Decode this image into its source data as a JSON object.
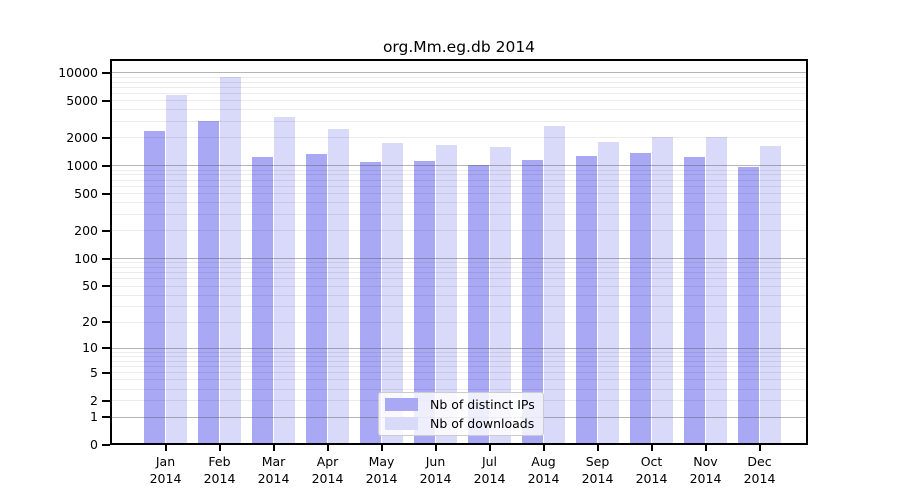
{
  "chart_data": {
    "type": "bar",
    "title": "org.Mm.eg.db 2014",
    "categories": [
      "Jan",
      "Feb",
      "Mar",
      "Apr",
      "May",
      "Jun",
      "Jul",
      "Aug",
      "Sep",
      "Oct",
      "Nov",
      "Dec"
    ],
    "category_year": "2014",
    "series": [
      {
        "name": "Nb of distinct IPs",
        "color": "#a8a8f5",
        "values": [
          2350,
          3010,
          1250,
          1350,
          1110,
          1130,
          1030,
          1160,
          1280,
          1370,
          1240,
          985
        ]
      },
      {
        "name": "Nb of downloads",
        "color": "#d9d9f9",
        "values": [
          5730,
          9000,
          3330,
          2520,
          1780,
          1680,
          1600,
          2710,
          1800,
          2070,
          2070,
          1640
        ]
      }
    ],
    "xlabel": "",
    "ylabel": "",
    "yscale": "log1p",
    "yticks": [
      0,
      1,
      2,
      5,
      10,
      20,
      50,
      100,
      200,
      500,
      1000,
      2000,
      5000,
      10000
    ],
    "ytick_major": [
      1,
      10,
      100,
      1000,
      10000
    ],
    "ylim": [
      0,
      14100
    ],
    "grid": "on",
    "legend_position": "lower center inside plot"
  }
}
